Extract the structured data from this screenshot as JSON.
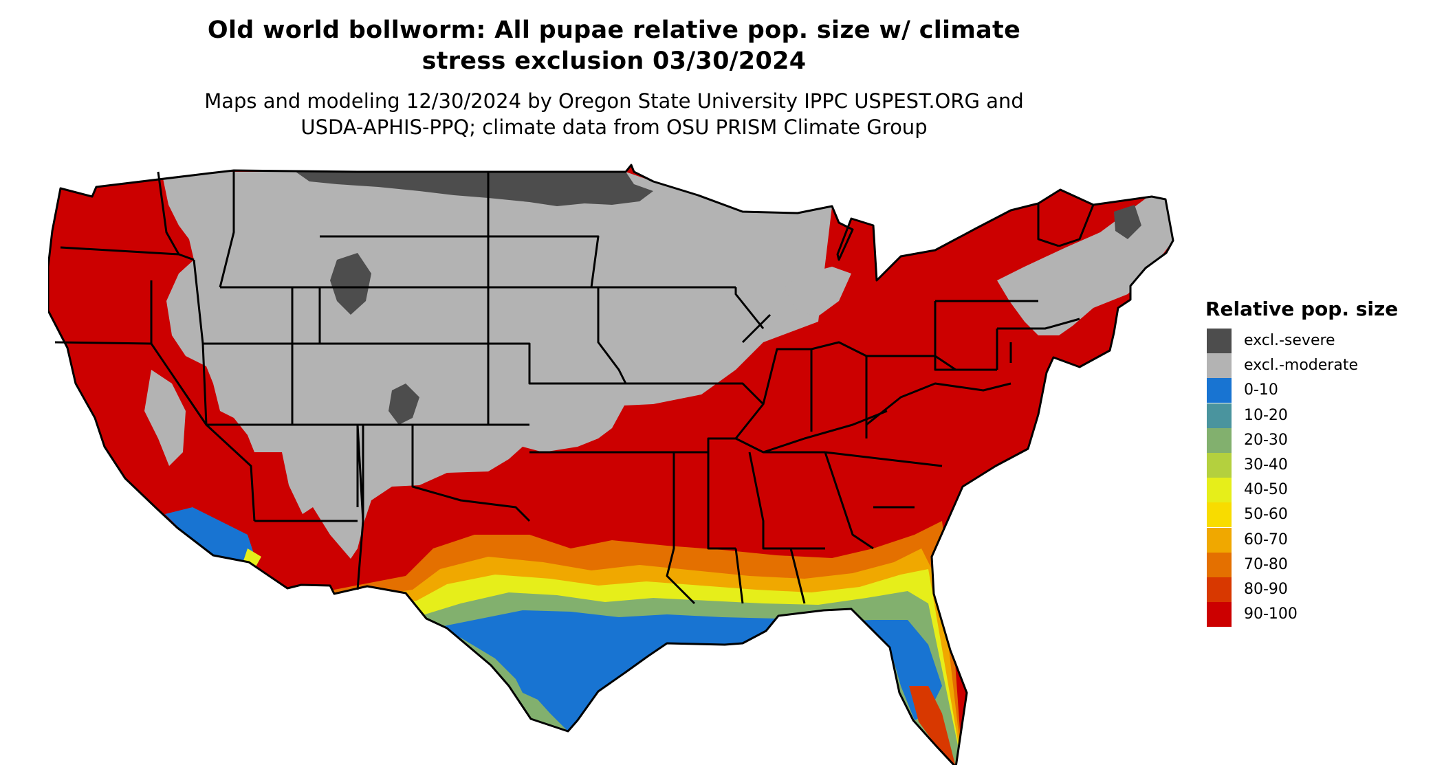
{
  "title": {
    "line1": "Old world bollworm: All pupae relative pop. size w/ climate",
    "line2": "stress exclusion 03/30/2024"
  },
  "subtitle": {
    "line1": "Maps and modeling 12/30/2024 by Oregon State University IPPC USPEST.ORG and",
    "line2": "USDA-APHIS-PPQ; climate data from OSU PRISM Climate Group"
  },
  "legend": {
    "title": "Relative pop. size",
    "items": [
      {
        "label": "excl.-severe",
        "color": "#4d4d4d"
      },
      {
        "label": "excl.-moderate",
        "color": "#b3b3b3"
      },
      {
        "label": "0-10",
        "color": "#1874d2"
      },
      {
        "label": "10-20",
        "color": "#4a949e"
      },
      {
        "label": "20-30",
        "color": "#82b06e"
      },
      {
        "label": "30-40",
        "color": "#b4d03e"
      },
      {
        "label": "40-50",
        "color": "#e6ee1a"
      },
      {
        "label": "50-60",
        "color": "#f8dc00"
      },
      {
        "label": "60-70",
        "color": "#f0a800"
      },
      {
        "label": "70-80",
        "color": "#e47000"
      },
      {
        "label": "80-90",
        "color": "#d83800"
      },
      {
        "label": "90-100",
        "color": "#cc0000"
      }
    ]
  },
  "map": {
    "region": "Contiguous United States",
    "colors": {
      "background_fill": "#cc0000",
      "state_borders": "#000000"
    }
  }
}
